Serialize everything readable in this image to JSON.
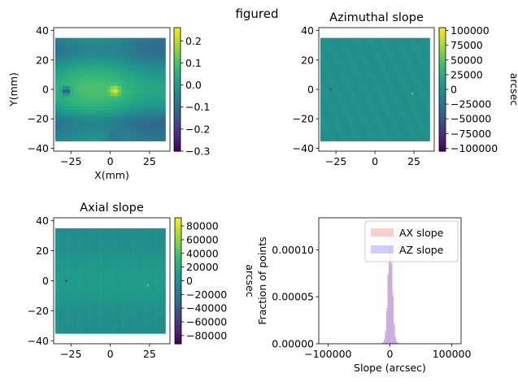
{
  "suptitle": "figured",
  "colormap": [
    "#440154",
    "#482878",
    "#3e4989",
    "#31688e",
    "#26828e",
    "#1f9e89",
    "#35b779",
    "#6ece58",
    "#b5de2b",
    "#fde725"
  ],
  "chart_data": [
    {
      "type": "heatmap",
      "title": "",
      "xlabel": "X(mm)",
      "ylabel": "Y(mm)",
      "xlim": [
        -36,
        38
      ],
      "ylim": [
        -42,
        42
      ],
      "extent": [
        -35,
        35,
        -35,
        35
      ],
      "xticks": [
        -25,
        0,
        25
      ],
      "yticks": [
        -40,
        -20,
        0,
        20,
        40
      ],
      "colorbar": {
        "label": "",
        "min": -0.3,
        "max": 0.26,
        "ticks": [
          -0.3,
          -0.2,
          -0.1,
          0.0,
          0.1,
          0.2
        ],
        "tick_labels": [
          "−0.3",
          "−0.2",
          "−0.1",
          "0.0",
          "0.1",
          "0.2"
        ]
      },
      "pattern": "figure"
    },
    {
      "type": "heatmap",
      "title": "Azimuthal slope",
      "xlabel": "",
      "ylabel": "",
      "xlim": [
        -36,
        38
      ],
      "ylim": [
        -42,
        42
      ],
      "extent": [
        -35,
        35,
        -35,
        35
      ],
      "xticks": [
        -25,
        0,
        25
      ],
      "yticks": [
        -40,
        -20,
        0,
        20,
        40
      ],
      "colorbar": {
        "label": "arcsec",
        "min": -105000,
        "max": 105000,
        "ticks": [
          -100000,
          -75000,
          -50000,
          -25000,
          0,
          25000,
          50000,
          75000,
          100000
        ],
        "tick_labels": [
          "−100000",
          "−75000",
          "−50000",
          "−25000",
          "0",
          "25000",
          "50000",
          "75000",
          "100000"
        ]
      },
      "pattern": "azimuthal"
    },
    {
      "type": "heatmap",
      "title": "Axial slope",
      "xlabel": "",
      "ylabel": "",
      "xlim": [
        -36,
        38
      ],
      "ylim": [
        -42,
        42
      ],
      "extent": [
        -35,
        35,
        -35,
        35
      ],
      "xticks": [
        -25,
        0,
        25
      ],
      "yticks": [
        -40,
        -20,
        0,
        20,
        40
      ],
      "colorbar": {
        "label": "arcsec",
        "min": -92000,
        "max": 92000,
        "ticks": [
          -80000,
          -60000,
          -40000,
          -20000,
          0,
          20000,
          40000,
          60000,
          80000
        ],
        "tick_labels": [
          "−80000",
          "−60000",
          "−40000",
          "−20000",
          "0",
          "20000",
          "40000",
          "60000",
          "80000"
        ]
      },
      "pattern": "axial"
    },
    {
      "type": "bar",
      "title": "",
      "xlabel": "Slope (arcsec)",
      "ylabel": "Fraction of points",
      "xlim": [
        -115000,
        115000
      ],
      "ylim": [
        0,
        0.000134
      ],
      "xticks": [
        -100000,
        0,
        100000
      ],
      "xtick_labels": [
        "−100000",
        "0",
        "100000"
      ],
      "yticks": [
        0.0,
        5e-05,
        0.0001
      ],
      "ytick_labels": [
        "0.00000",
        "0.00005",
        "0.00010"
      ],
      "legend": "top-right",
      "series": [
        {
          "name": "AX slope",
          "color": "#ff7f7f",
          "opacity": 0.4,
          "x": [
            -14000,
            -12000,
            -10000,
            -8000,
            -6000,
            -4000,
            -2000,
            0,
            2000,
            4000,
            6000,
            8000,
            10000,
            12000
          ],
          "values": [
            5e-07,
            1.5e-06,
            4e-06,
            1.2e-05,
            3.5e-05,
            7.2e-05,
            0.0001,
            0.000112,
            9e-05,
            5.5e-05,
            2.2e-05,
            8e-06,
            3e-06,
            1e-06
          ]
        },
        {
          "name": "AZ slope",
          "color": "#7f7fff",
          "opacity": 0.4,
          "x": [
            -14000,
            -12000,
            -10000,
            -8000,
            -6000,
            -4000,
            -2000,
            0,
            2000,
            4000,
            6000,
            8000,
            10000,
            12000
          ],
          "values": [
            5e-07,
            2e-06,
            5e-06,
            1.4e-05,
            3.8e-05,
            7.5e-05,
            9.8e-05,
            0.000108,
            8.5e-05,
            5e-05,
            2e-05,
            7e-06,
            2e-06,
            1e-06
          ]
        }
      ]
    }
  ]
}
